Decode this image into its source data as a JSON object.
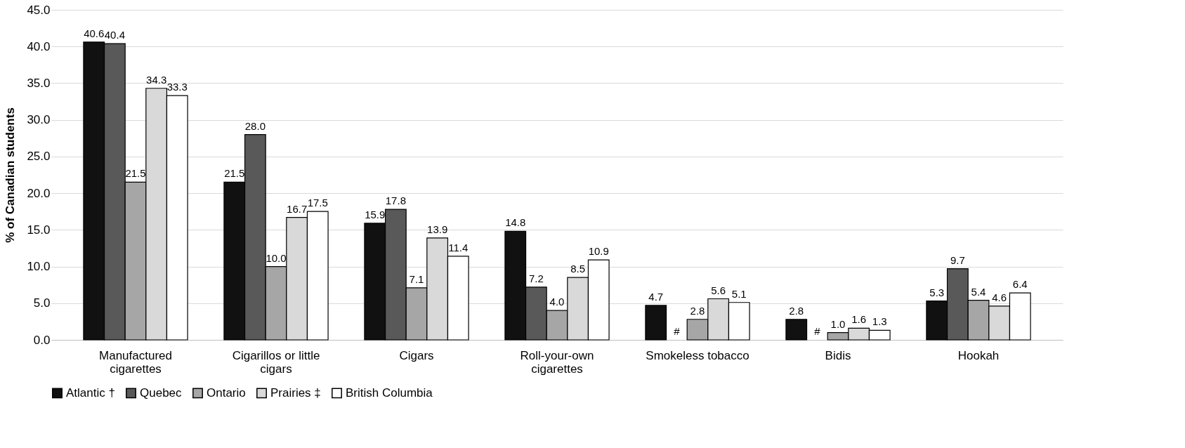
{
  "chart_data": {
    "type": "bar",
    "ylabel": "% of Canadian students",
    "categories": [
      "Manufactured cigarettes",
      "Cigarillos or little cigars",
      "Cigars",
      "Roll-your-own cigarettes",
      "Smokeless tobacco",
      "Bidis",
      "Hookah"
    ],
    "series": [
      {
        "name": "Atlantic †",
        "color": "#111111",
        "values": [
          40.6,
          21.5,
          15.9,
          14.8,
          4.7,
          2.8,
          5.3
        ],
        "value_labels": [
          "40.6",
          "21.5",
          "15.9",
          "14.8",
          "4.7",
          "2.8",
          "5.3"
        ]
      },
      {
        "name": "Quebec",
        "color": "#595959",
        "values": [
          40.4,
          28.0,
          17.8,
          7.2,
          null,
          null,
          9.7
        ],
        "value_labels": [
          "40.4",
          "28.0",
          "17.8",
          "7.2",
          "#",
          "#",
          "9.7"
        ]
      },
      {
        "name": "Ontario",
        "color": "#a6a6a6",
        "values": [
          21.5,
          10.0,
          7.1,
          4.0,
          2.8,
          1.0,
          5.4
        ],
        "value_labels": [
          "21.5",
          "10.0",
          "7.1",
          "4.0",
          "2.8",
          "1.0",
          "5.4"
        ]
      },
      {
        "name": "Prairies ‡",
        "color": "#d9d9d9",
        "values": [
          34.3,
          16.7,
          13.9,
          8.5,
          5.6,
          1.6,
          4.6
        ],
        "value_labels": [
          "34.3",
          "16.7",
          "13.9",
          "8.5",
          "5.6",
          "1.6",
          "4.6"
        ]
      },
      {
        "name": "British Columbia",
        "color": "#ffffff",
        "values": [
          33.3,
          17.5,
          11.4,
          10.9,
          5.1,
          1.3,
          6.4
        ],
        "value_labels": [
          "33.3",
          "17.5",
          "11.4",
          "10.9",
          "5.1",
          "1.3",
          "6.4"
        ]
      }
    ],
    "ylim": [
      0,
      45
    ],
    "yticks": [
      {
        "value": 0,
        "label": "0.0"
      },
      {
        "value": 5,
        "label": "5.0"
      },
      {
        "value": 10,
        "label": "10.0"
      },
      {
        "value": 15,
        "label": "15.0"
      },
      {
        "value": 20,
        "label": "20.0"
      },
      {
        "value": 25,
        "label": "25.0"
      },
      {
        "value": 30,
        "label": "30.0"
      },
      {
        "value": 35,
        "label": "35.0"
      },
      {
        "value": 40,
        "label": "40.0"
      },
      {
        "value": 45,
        "label": "45.0"
      }
    ],
    "grid": "y",
    "legend": "bottom"
  }
}
